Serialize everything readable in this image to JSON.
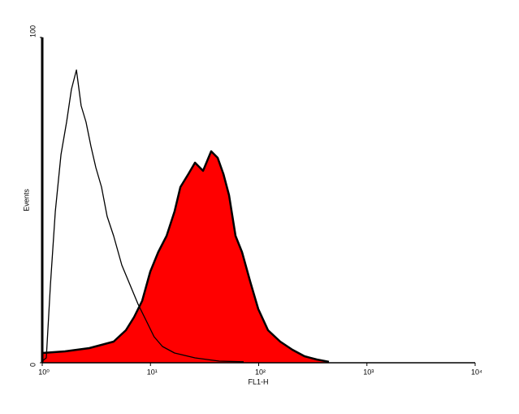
{
  "chart_data": {
    "type": "histogram-overlay",
    "xlabel": "FL1-H",
    "ylabel": "Events",
    "xscale": "log",
    "xlim": [
      1,
      10000
    ],
    "xticks": [
      {
        "value": 1,
        "label": "10⁰"
      },
      {
        "value": 10,
        "label": "10¹"
      },
      {
        "value": 100,
        "label": "10²"
      },
      {
        "value": 1000,
        "label": "10³"
      },
      {
        "value": 10000,
        "label": "10⁴"
      }
    ],
    "ylim": [
      0,
      100
    ],
    "yticks": [
      0,
      100
    ],
    "series": [
      {
        "color": "#000000",
        "fill": "#ff0000",
        "x": [
          1,
          1.62,
          2.72,
          4.57,
          5.93,
          7.05,
          8.38,
          9.95,
          11.8,
          14.1,
          16.7,
          18.9,
          22.4,
          25.8,
          30.6,
          36.4,
          41.8,
          47.2,
          53.2,
          61.1,
          70.2,
          83.4,
          99.1,
          122,
          158,
          205,
          265,
          344,
          446
        ],
        "values": [
          3,
          3.5,
          4.5,
          6.5,
          10,
          14,
          19,
          28,
          34,
          39,
          46.5,
          54,
          58,
          61.5,
          59,
          65,
          63,
          58,
          51.5,
          39,
          34,
          25,
          16.5,
          10,
          6.5,
          4,
          2,
          1,
          0.3
        ]
      },
      {
        "color": "#000000",
        "x": [
          1,
          1.09,
          1.19,
          1.32,
          1.49,
          1.68,
          1.86,
          2.07,
          2.29,
          2.54,
          2.82,
          3.13,
          3.53,
          3.98,
          4.57,
          5.44,
          6.46,
          7.68,
          9.12,
          10.8,
          12.9,
          16.7,
          25.8,
          43.3,
          72.6
        ],
        "values": [
          0.5,
          1.5,
          24,
          46.5,
          64,
          74,
          84,
          90,
          79,
          74,
          66.5,
          60,
          54,
          45,
          39,
          30,
          24,
          18,
          13,
          8,
          5,
          3,
          1.5,
          0.5,
          0.3
        ]
      }
    ]
  }
}
